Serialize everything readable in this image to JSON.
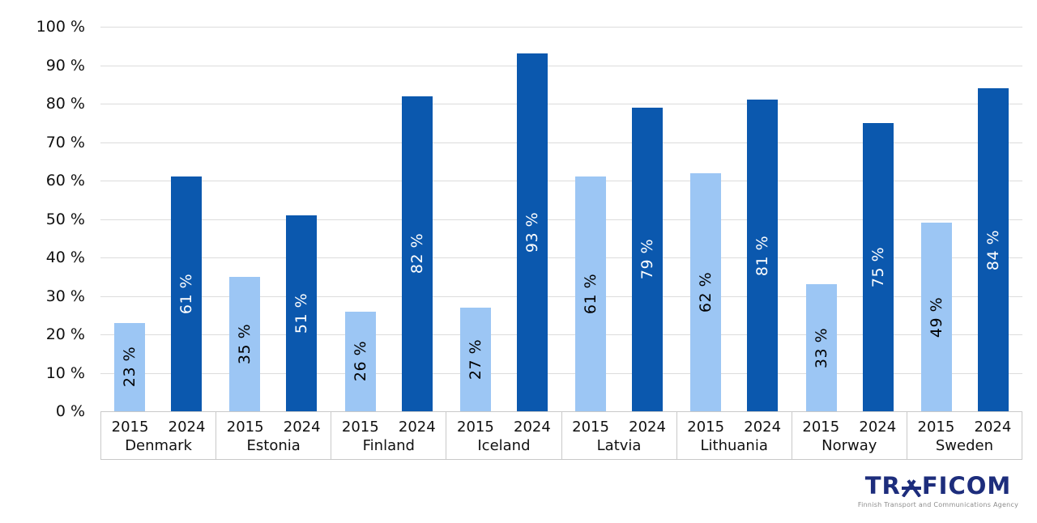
{
  "chart_data": {
    "type": "bar",
    "title": "",
    "categories": [
      "Denmark",
      "Estonia",
      "Finland",
      "Iceland",
      "Latvia",
      "Lithuania",
      "Norway",
      "Sweden"
    ],
    "series": [
      {
        "name": "2015",
        "color": "#9CC6F4",
        "label_color": "#000000",
        "values": [
          23,
          35,
          26,
          27,
          61,
          62,
          33,
          49
        ]
      },
      {
        "name": "2024",
        "color": "#0B58AE",
        "label_color": "#FFFFFF",
        "values": [
          61,
          51,
          82,
          93,
          79,
          81,
          75,
          84
        ]
      }
    ],
    "value_suffix": " %",
    "xlabel": "",
    "ylabel": "",
    "ylim": [
      0,
      100
    ],
    "y_tick_labels": [
      "0 %",
      "10 %",
      "20 %",
      "30 %",
      "40 %",
      "50 %",
      "60 %",
      "70 %",
      "80 %",
      "90 %",
      "100 %"
    ],
    "grid": true,
    "legend_position": "none",
    "bar_label_position": "center-rotated"
  },
  "colors": {
    "gridline": "#DCDCDC",
    "axis_border": "#C9C9C9",
    "tick_text": "#111111"
  },
  "footer": {
    "logo_text": "TRAFICOM",
    "logo_text_left": "TR",
    "logo_text_right": "FICOM",
    "logo_subtitle": "Finnish Transport and Communications Agency",
    "logo_color": "#1D2D7C",
    "logo_subtitle_color": "#8C8C8C"
  }
}
